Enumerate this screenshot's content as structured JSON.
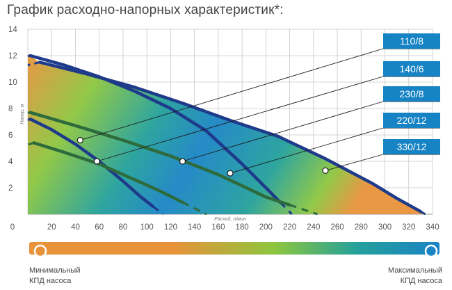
{
  "title": "График расходно-напорных характеристик*:",
  "chart_data": {
    "type": "line",
    "xlabel": "Расход, л/мин",
    "ylabel": "Напор, м",
    "xlim": [
      0,
      340
    ],
    "ylim": [
      0,
      14
    ],
    "xticks": [
      "0",
      "20",
      "40",
      "60",
      "80",
      "100",
      "120",
      "140",
      "160",
      "180",
      "200",
      "220",
      "240",
      "260",
      "280",
      "300",
      "320",
      "340"
    ],
    "yticks": [
      "2",
      "4",
      "6",
      "8",
      "10",
      "12",
      "14"
    ],
    "grid": true,
    "series": [
      {
        "name": "110/8",
        "color": "#1e3a8a",
        "x": [
          2,
          20,
          40,
          60,
          80,
          95,
          105
        ],
        "y": [
          7.2,
          6.4,
          5.3,
          4.0,
          2.5,
          1.3,
          0.6
        ]
      },
      {
        "name": "140/6",
        "color": "#2e6b3c",
        "x": [
          5,
          30,
          60,
          90,
          110,
          130
        ],
        "y": [
          5.4,
          4.7,
          3.8,
          2.6,
          1.8,
          0.9
        ]
      },
      {
        "name": "230/8",
        "color": "#1e3a8a",
        "x": [
          2,
          30,
          60,
          90,
          120,
          150,
          180,
          200,
          212
        ],
        "y": [
          12.0,
          11.3,
          10.4,
          9.3,
          8.0,
          6.3,
          3.8,
          2.0,
          0.9
        ]
      },
      {
        "name": "220/12",
        "color": "#2e6b3c",
        "x": [
          2,
          40,
          80,
          120,
          160,
          200,
          220
        ],
        "y": [
          7.7,
          6.7,
          5.6,
          4.4,
          3.0,
          1.3,
          0.7
        ]
      },
      {
        "name": "330/12",
        "color": "#1e3a8a",
        "x": [
          10,
          50,
          90,
          130,
          170,
          210,
          250,
          290,
          310,
          330
        ],
        "y": [
          11.5,
          10.6,
          9.6,
          8.4,
          7.1,
          5.9,
          4.2,
          2.3,
          1.2,
          0.2
        ]
      }
    ],
    "markers": [
      {
        "label": "110/8",
        "x": 44,
        "y": 5.6
      },
      {
        "label": "140/6",
        "x": 58,
        "y": 4.0
      },
      {
        "label": "230/8",
        "x": 130,
        "y": 4.0
      },
      {
        "label": "220/12",
        "x": 170,
        "y": 3.1
      },
      {
        "label": "330/12",
        "x": 250,
        "y": 3.3
      }
    ],
    "colorbar": {
      "left_label": "Минимальный КПД насоса",
      "right_label": "Максимальный КПД насоса",
      "colors": [
        "#e8923a",
        "#8cc63f",
        "#23a09b",
        "#1a84c5"
      ]
    }
  }
}
